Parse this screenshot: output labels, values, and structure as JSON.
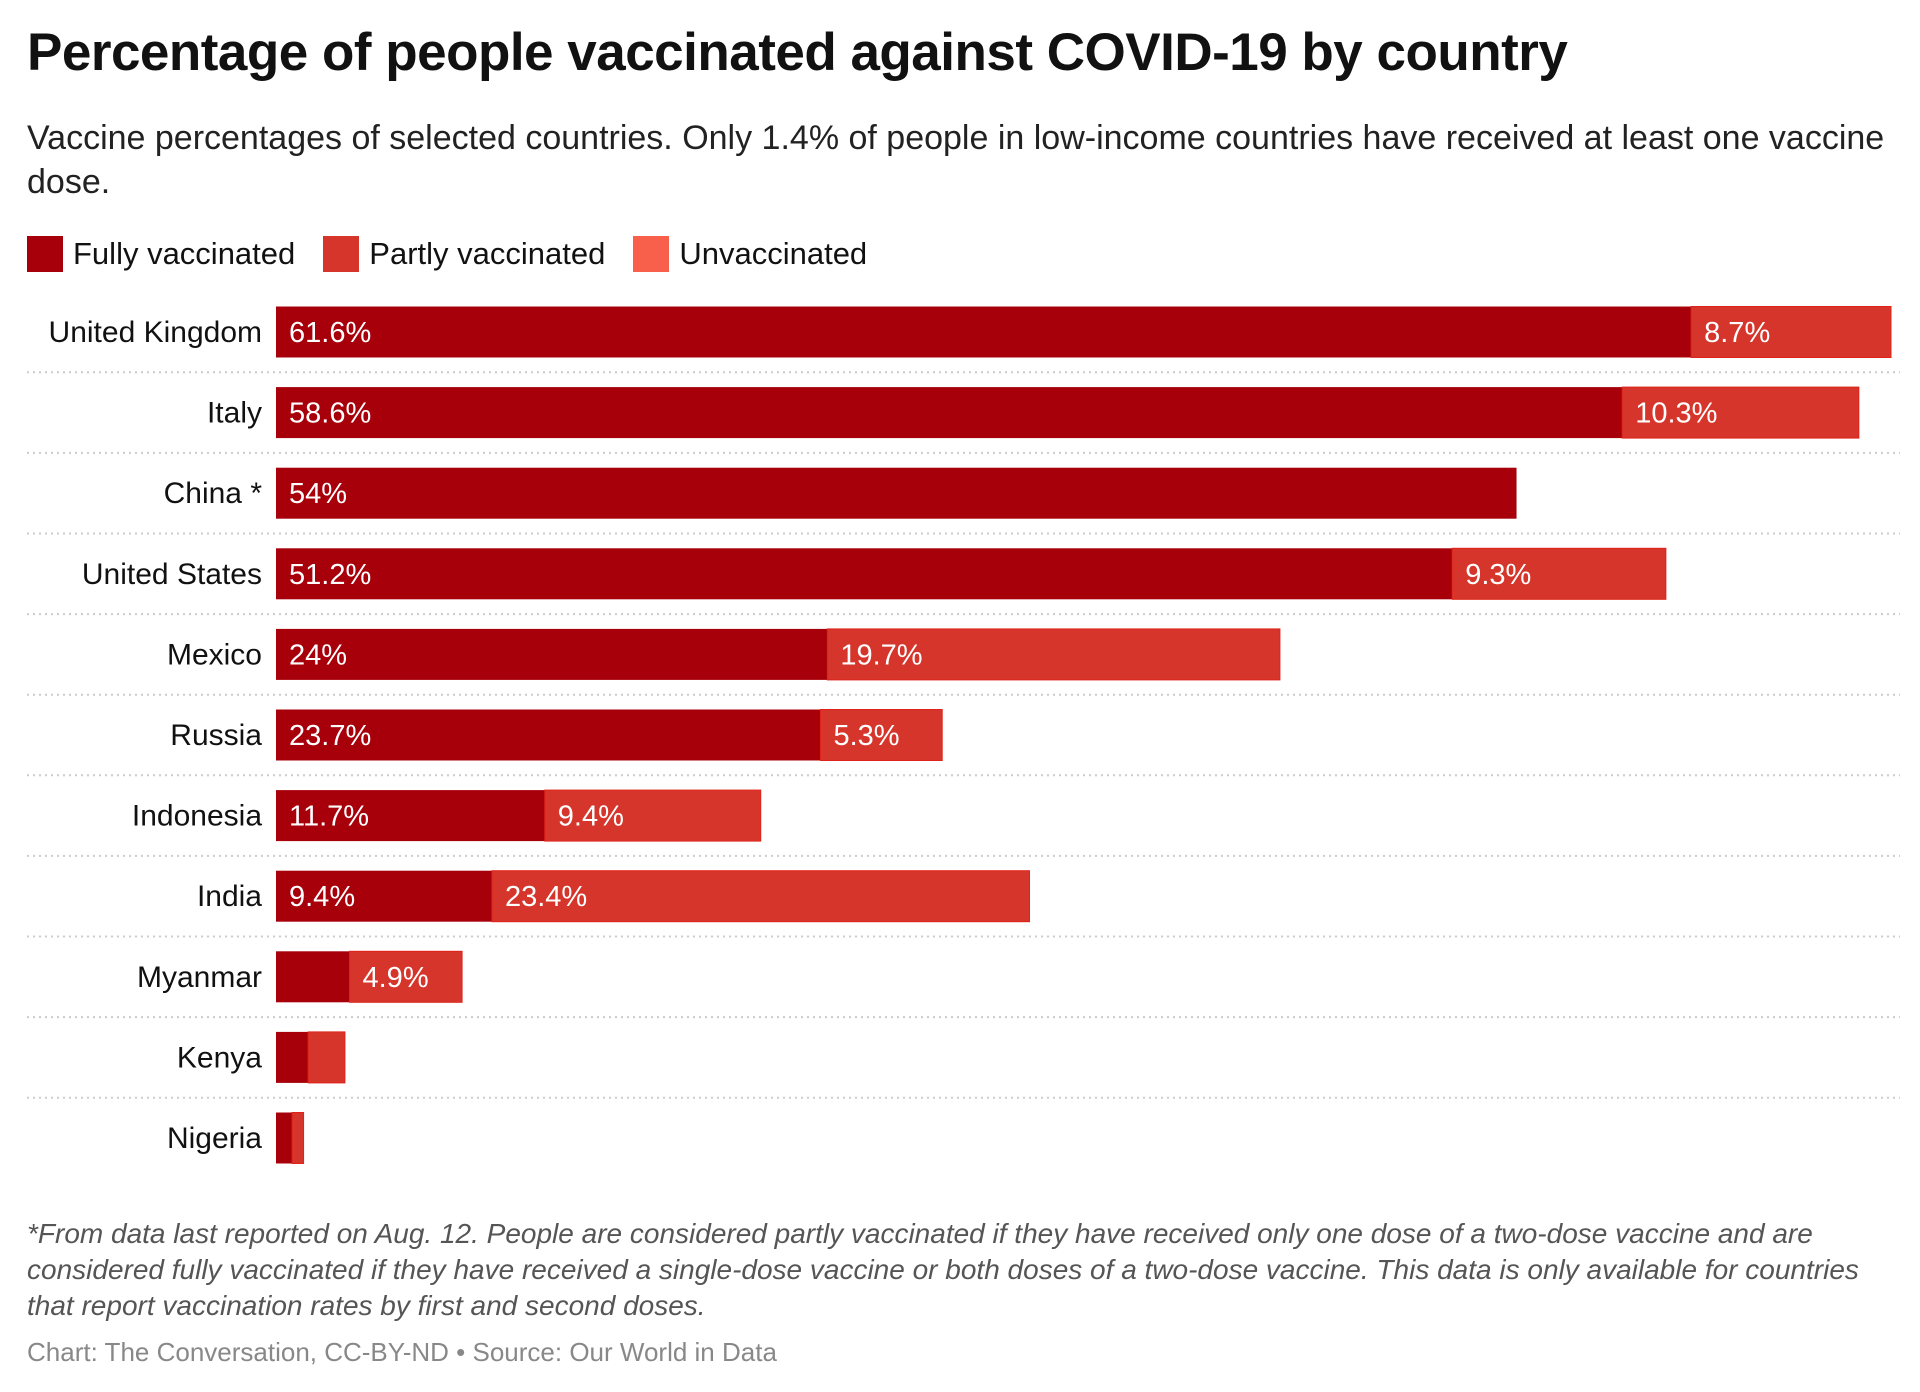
{
  "chart_data": {
    "type": "bar",
    "orientation": "horizontal",
    "stacked": true,
    "title": "Percentage of people vaccinated against COVID-19 by country",
    "subtitle": "Vaccine percentages of selected countries. Only 1.4% of people in low-income countries have received at least one vaccine dose.",
    "legend": [
      {
        "name": "Fully vaccinated",
        "color": "#a8000a"
      },
      {
        "name": "Partly vaccinated",
        "color": "#d5352a"
      },
      {
        "name": "Unvaccinated",
        "color": "#f8604c"
      }
    ],
    "legend_position": "top-left",
    "categories": [
      "United Kingdom",
      "Italy",
      "China *",
      "United States",
      "Mexico",
      "Russia",
      "Indonesia",
      "India",
      "Myanmar",
      "Kenya",
      "Nigeria"
    ],
    "series": [
      {
        "name": "Fully vaccinated",
        "values": [
          61.6,
          58.6,
          54,
          51.2,
          24,
          23.7,
          11.7,
          9.4,
          3.2,
          1.4,
          0.7
        ],
        "labels": [
          "61.6%",
          "58.6%",
          "54%",
          "51.2%",
          "24%",
          "23.7%",
          "11.7%",
          "9.4%",
          "",
          "",
          ""
        ]
      },
      {
        "name": "Partly vaccinated",
        "values": [
          8.7,
          10.3,
          0,
          9.3,
          19.7,
          5.3,
          9.4,
          23.4,
          4.9,
          1.6,
          0.5
        ],
        "labels": [
          "8.7%",
          "10.3%",
          "",
          "9.3%",
          "19.7%",
          "5.3%",
          "9.4%",
          "23.4%",
          "4.9%",
          "",
          ""
        ]
      }
    ],
    "xlim": [
      0,
      70.3
    ],
    "grid": false,
    "footnote": "*From data last reported on Aug. 12. People are considered partly vaccinated if they have received only one dose of a two-dose vaccine and are considered fully vaccinated if they have received a single-dose vaccine or both doses of a two-dose vaccine. This data is only available for countries that report vaccination rates by first and second doses.",
    "source": "Chart: The Conversation, CC-BY-ND • Source: Our World in Data"
  }
}
